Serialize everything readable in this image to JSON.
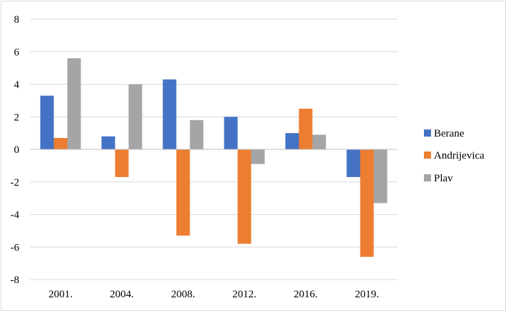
{
  "chart_data": {
    "type": "bar",
    "categories": [
      "2001.",
      "2004.",
      "2008.",
      "2012.",
      "2016.",
      "2019."
    ],
    "series": [
      {
        "name": "Berane",
        "color": "#4472C4",
        "values": [
          3.3,
          0.8,
          4.3,
          2.0,
          1.0,
          -1.7
        ]
      },
      {
        "name": "Andrijevica",
        "color": "#ED7D31",
        "values": [
          0.7,
          -1.7,
          -5.3,
          -5.8,
          2.5,
          -6.6
        ]
      },
      {
        "name": "Plav",
        "color": "#A5A5A5",
        "values": [
          5.6,
          4.0,
          1.8,
          -0.9,
          0.9,
          -3.3
        ]
      }
    ],
    "ylim": [
      -8,
      8
    ],
    "yticks": [
      8,
      6,
      4,
      2,
      0,
      -2,
      -4,
      -6,
      -8
    ],
    "grid": true,
    "legend_position": "right",
    "title": "",
    "xlabel": "",
    "ylabel": ""
  }
}
